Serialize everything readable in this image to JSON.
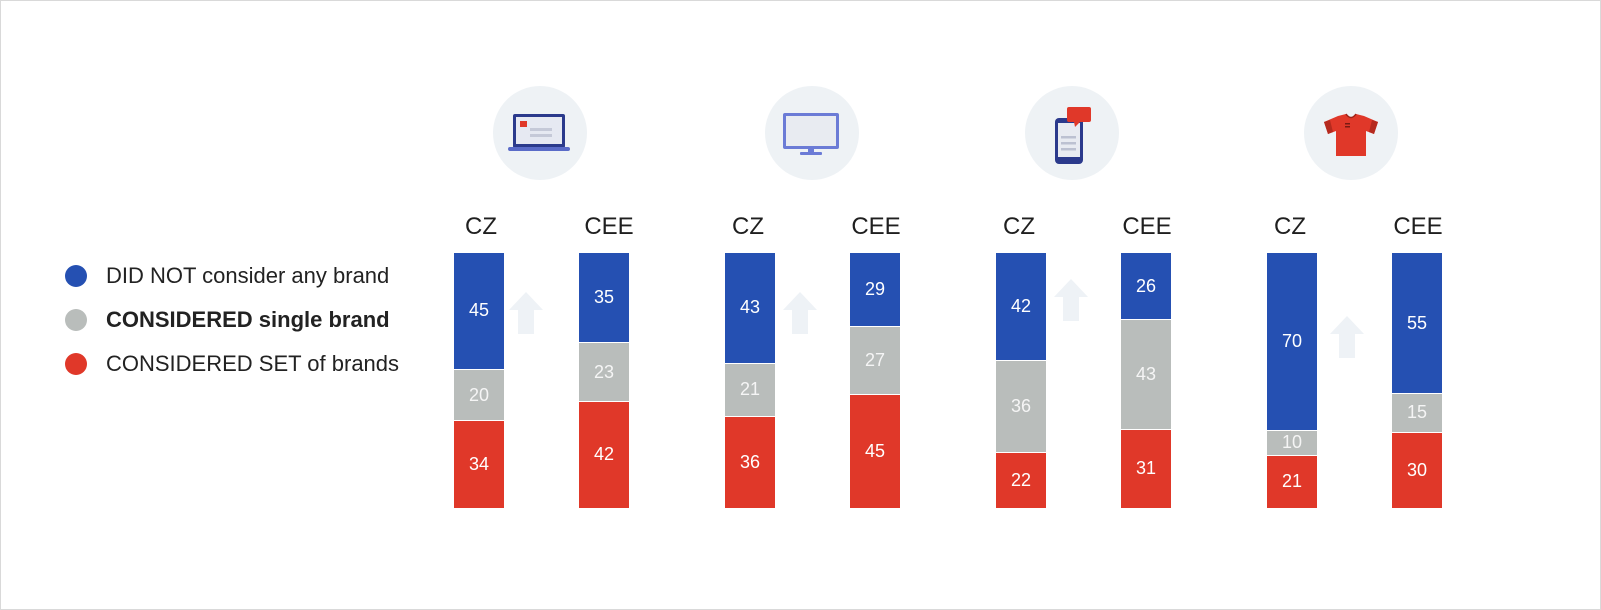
{
  "colors": {
    "did_not": "#2550b2",
    "single": "#b9bdbb",
    "set": "#e03829",
    "icon_bg": "#eef2f5",
    "arrow": "#eef2f6"
  },
  "legend": [
    {
      "label": "DID NOT consider any brand",
      "color": "#2550b2",
      "bold": false
    },
    {
      "label": "CONSIDERED single brand",
      "color": "#b9bdbb",
      "bold": true
    },
    {
      "label": "CONSIDERED SET of brands",
      "color": "#e03829",
      "bold": false
    }
  ],
  "chart_data": {
    "type": "bar",
    "stacked": true,
    "orientation": "vertical",
    "series_names": [
      "DID NOT consider any brand",
      "CONSIDERED single brand",
      "CONSIDERED SET of brands"
    ],
    "groups": [
      {
        "icon": "laptop-icon",
        "bars": [
          {
            "label": "CZ",
            "values": [
              45,
              20,
              34
            ]
          },
          {
            "label": "CEE",
            "values": [
              35,
              23,
              42
            ]
          }
        ]
      },
      {
        "icon": "tv-monitor-icon",
        "bars": [
          {
            "label": "CZ",
            "values": [
              43,
              21,
              36
            ]
          },
          {
            "label": "CEE",
            "values": [
              29,
              27,
              45
            ]
          }
        ]
      },
      {
        "icon": "smartphone-icon",
        "bars": [
          {
            "label": "CZ",
            "values": [
              42,
              36,
              22
            ]
          },
          {
            "label": "CEE",
            "values": [
              26,
              43,
              31
            ]
          }
        ]
      },
      {
        "icon": "tshirt-icon",
        "bars": [
          {
            "label": "CZ",
            "values": [
              70,
              10,
              21
            ]
          },
          {
            "label": "CEE",
            "values": [
              55,
              15,
              30
            ]
          }
        ]
      }
    ],
    "title": "",
    "xlabel": "",
    "ylabel": "",
    "ylim": [
      0,
      100
    ]
  }
}
